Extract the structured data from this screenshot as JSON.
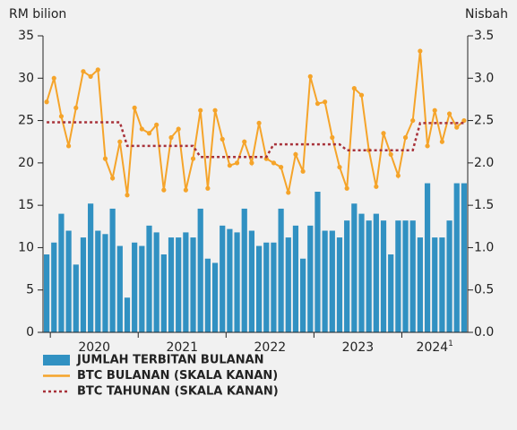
{
  "chart_data": {
    "type": "bar-line",
    "y_label": "RM bilion",
    "y2_label": "Nisbah",
    "categories": [
      null,
      null,
      null,
      null,
      null,
      null,
      null,
      null,
      null,
      null,
      null,
      null,
      null,
      null,
      null,
      null,
      null,
      null,
      null,
      null,
      null,
      null,
      null,
      null,
      null,
      null,
      null,
      null,
      null,
      null,
      null,
      null,
      null,
      null,
      null,
      null,
      null,
      null,
      null,
      null,
      null,
      null,
      null,
      null,
      null,
      null,
      null,
      null,
      null,
      null,
      null,
      null,
      null,
      null,
      null,
      null,
      null,
      null
    ],
    "x_year_labels": [
      "2020",
      "2021",
      "2022",
      "2023",
      "2024"
    ],
    "footnote_marker": "1",
    "ylim": [
      0,
      35
    ],
    "yticks": [
      0,
      5,
      10,
      15,
      20,
      25,
      30,
      35
    ],
    "y2lim": [
      0,
      3.5
    ],
    "y2ticks": [
      {
        "value": 0,
        "label": "0.0"
      },
      0.5,
      {
        "value": 1,
        "label": "1.0"
      },
      1.5,
      {
        "value": 2,
        "label": "2.0"
      },
      2.5,
      {
        "value": 3,
        "label": "3.0"
      },
      3.5
    ],
    "series": [
      {
        "name": "JUMLAH TERBITAN BULANAN",
        "type": "bar",
        "color": "#3191c2",
        "values": [
          9.2,
          10.6,
          14,
          12,
          8,
          11.2,
          15.2,
          12,
          11.6,
          14.6,
          10.2,
          4.1,
          10.6,
          10.2,
          12.6,
          11.8,
          9.2,
          11.2,
          11.2,
          11.8,
          11.2,
          14.6,
          8.7,
          8.2,
          12.6,
          12.2,
          11.8,
          14.6,
          12,
          10.2,
          10.6,
          10.6,
          14.6,
          11.2,
          12.6,
          8.7,
          12.6,
          16.6,
          12,
          12,
          11.2,
          13.2,
          15.2,
          14,
          13.2,
          14,
          13.2,
          9.2,
          13.2,
          13.2,
          13.2,
          11.2,
          17.6,
          11.2,
          11.2,
          13.2,
          17.6,
          17.6
        ]
      },
      {
        "name": "BTC BULANAN (SKALA KANAN)",
        "type": "line",
        "axis": "y2",
        "color": "#f5a42a",
        "values": [
          2.72,
          3.0,
          2.55,
          2.2,
          2.65,
          3.08,
          3.02,
          3.1,
          2.05,
          1.82,
          2.25,
          1.62,
          2.65,
          2.4,
          2.35,
          2.45,
          1.68,
          2.3,
          2.4,
          1.68,
          2.05,
          2.62,
          1.7,
          2.62,
          2.28,
          1.97,
          2.0,
          2.25,
          2.0,
          2.47,
          2.05,
          2.0,
          1.95,
          1.65,
          2.1,
          1.9,
          3.02,
          2.7,
          2.72,
          2.3,
          1.95,
          1.7,
          2.88,
          2.8,
          2.15,
          1.72,
          2.35,
          2.1,
          1.85,
          2.3,
          2.5,
          3.32,
          2.2,
          2.62,
          2.25,
          2.58,
          2.42,
          2.5
        ]
      },
      {
        "name": "BTC TAHUNAN (SKALA KANAN)",
        "type": "dotted-line",
        "axis": "y2",
        "color": "#a8323a",
        "values": [
          2.48,
          2.48,
          2.48,
          2.48,
          2.48,
          2.48,
          2.48,
          2.48,
          2.48,
          2.48,
          2.48,
          2.2,
          2.2,
          2.2,
          2.2,
          2.2,
          2.2,
          2.2,
          2.2,
          2.2,
          2.2,
          2.07,
          2.07,
          2.07,
          2.07,
          2.07,
          2.07,
          2.07,
          2.07,
          2.07,
          2.07,
          2.22,
          2.22,
          2.22,
          2.22,
          2.22,
          2.22,
          2.22,
          2.22,
          2.22,
          2.22,
          2.15,
          2.15,
          2.15,
          2.15,
          2.15,
          2.15,
          2.15,
          2.15,
          2.15,
          2.15,
          2.47,
          2.47,
          2.47,
          2.47,
          2.47,
          2.47,
          2.47
        ]
      }
    ]
  }
}
